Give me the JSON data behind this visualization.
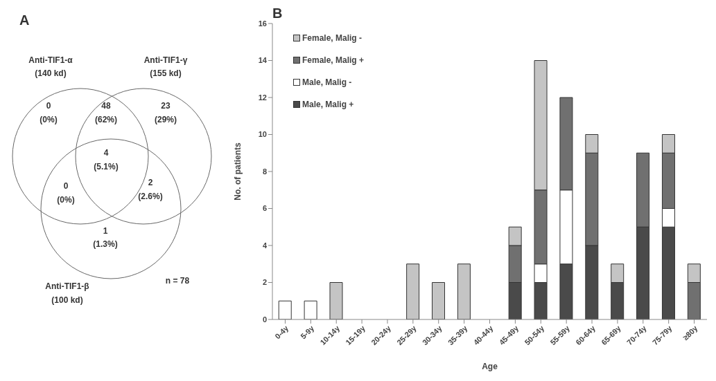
{
  "chart_data": [
    {
      "type": "other",
      "title": "A",
      "annotations": [
        "Anti-TIF1-α",
        "(140 kd)",
        "Anti-TIF1-γ",
        "(155 kd)",
        "0",
        "(0%)",
        "48",
        "(62%)",
        "23",
        "(29%)",
        "4",
        "(5.1%)",
        "0",
        "(0%)",
        "2",
        "(2.6%)",
        "1",
        "(1.3%)",
        "Anti-TIF1-β",
        "(100 kd)",
        "n = 78"
      ]
    },
    {
      "type": "bar",
      "title": "B",
      "xlabel": "Age",
      "ylabel": "No. of patients",
      "stacked": true,
      "categories": [
        "0-4y",
        "5-9y",
        "10-14y",
        "15-19y",
        "20-24y",
        "25-29y",
        "30-34y",
        "35-39y",
        "40-44y",
        "45-49y",
        "50-54y",
        "55-59y",
        "60-64y",
        "65-69y",
        "70-74y",
        "75-79y",
        "≥80y"
      ],
      "series": [
        {
          "name": "Male, Malig +",
          "color": "#4a4a4a",
          "values": [
            0,
            0,
            0,
            0,
            0,
            0,
            0,
            0,
            0,
            2,
            2,
            3,
            4,
            2,
            5,
            5,
            0
          ]
        },
        {
          "name": "Male, Malig -",
          "color": "#ffffff",
          "values": [
            1,
            1,
            0,
            0,
            0,
            0,
            0,
            0,
            0,
            0,
            1,
            4,
            0,
            0,
            0,
            1,
            0
          ]
        },
        {
          "name": "Female, Malig +",
          "color": "#707070",
          "values": [
            0,
            0,
            0,
            0,
            0,
            0,
            0,
            0,
            0,
            2,
            4,
            5,
            5,
            0,
            4,
            3,
            2
          ]
        },
        {
          "name": "Female, Malig -",
          "color": "#c4c4c4",
          "values": [
            0,
            0,
            2,
            0,
            0,
            3,
            2,
            3,
            0,
            1,
            7,
            0,
            1,
            1,
            0,
            1,
            1
          ]
        }
      ],
      "ylim": [
        0,
        16
      ],
      "yticks": [
        0,
        2,
        4,
        6,
        8,
        10,
        12,
        14,
        16
      ],
      "legend": "top left"
    }
  ]
}
